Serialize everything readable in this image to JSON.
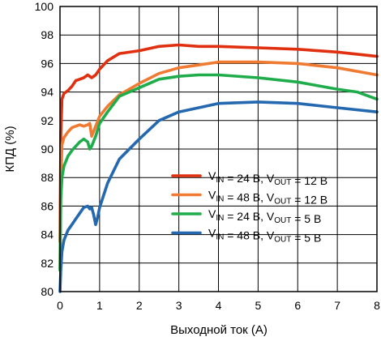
{
  "chart_data": {
    "type": "line",
    "title": "",
    "xlabel": "Выходной ток (А)",
    "ylabel": "КПД (%)",
    "xlim": [
      0,
      8
    ],
    "ylim": [
      80,
      100
    ],
    "x_ticks": [
      0,
      1,
      2,
      3,
      4,
      5,
      6,
      7,
      8
    ],
    "y_ticks": [
      80,
      82,
      84,
      86,
      88,
      90,
      92,
      94,
      96,
      98,
      100
    ],
    "grid": true,
    "legend_position": "center-right",
    "series": [
      {
        "legend": {
          "vin_label": "V",
          "vin_sub": "IN",
          "vin_value": " = 24 В, ",
          "vout_label": "V",
          "vout_sub": "OUT",
          "vout_value": " = 12 В"
        },
        "color": "#e0300f",
        "points": [
          [
            0,
            83.5
          ],
          [
            0.02,
            91
          ],
          [
            0.05,
            93.5
          ],
          [
            0.1,
            93.9
          ],
          [
            0.2,
            94.1
          ],
          [
            0.3,
            94.4
          ],
          [
            0.4,
            94.8
          ],
          [
            0.5,
            94.9
          ],
          [
            0.6,
            95.0
          ],
          [
            0.7,
            95.2
          ],
          [
            0.8,
            95.0
          ],
          [
            0.9,
            95.2
          ],
          [
            1.0,
            95.6
          ],
          [
            1.2,
            96.2
          ],
          [
            1.5,
            96.7
          ],
          [
            2.0,
            96.9
          ],
          [
            2.5,
            97.2
          ],
          [
            3.0,
            97.3
          ],
          [
            3.5,
            97.2
          ],
          [
            4.0,
            97.2
          ],
          [
            5.0,
            97.1
          ],
          [
            6.0,
            97.0
          ],
          [
            7.0,
            96.8
          ],
          [
            8.0,
            96.5
          ]
        ]
      },
      {
        "legend": {
          "vin_label": "V",
          "vin_sub": "IN",
          "vin_value": " = 48 В, ",
          "vout_label": "V",
          "vout_sub": "OUT",
          "vout_value": " = 12 В"
        },
        "color": "#f07a32",
        "points": [
          [
            0,
            81.6
          ],
          [
            0.02,
            87.5
          ],
          [
            0.05,
            90.3
          ],
          [
            0.1,
            90.8
          ],
          [
            0.2,
            91.2
          ],
          [
            0.3,
            91.5
          ],
          [
            0.4,
            91.6
          ],
          [
            0.5,
            91.7
          ],
          [
            0.6,
            91.6
          ],
          [
            0.7,
            91.7
          ],
          [
            0.75,
            91.8
          ],
          [
            0.8,
            90.9
          ],
          [
            0.9,
            91.6
          ],
          [
            1.0,
            92.3
          ],
          [
            1.2,
            93.0
          ],
          [
            1.5,
            93.8
          ],
          [
            2.0,
            94.6
          ],
          [
            2.5,
            95.3
          ],
          [
            3.0,
            95.7
          ],
          [
            3.5,
            95.9
          ],
          [
            4.0,
            96.1
          ],
          [
            5.0,
            96.1
          ],
          [
            6.0,
            96.0
          ],
          [
            7.0,
            95.7
          ],
          [
            8.0,
            95.2
          ]
        ]
      },
      {
        "legend": {
          "vin_label": "V",
          "vin_sub": "IN",
          "vin_value": " = 24 В, ",
          "vout_label": "V",
          "vout_sub": "OUT",
          "vout_value": " = 5 В"
        },
        "color": "#1fad4b",
        "points": [
          [
            0,
            81.5
          ],
          [
            0.02,
            86.5
          ],
          [
            0.05,
            88.0
          ],
          [
            0.1,
            88.8
          ],
          [
            0.2,
            89.5
          ],
          [
            0.3,
            89.9
          ],
          [
            0.4,
            90.2
          ],
          [
            0.5,
            90.5
          ],
          [
            0.6,
            90.7
          ],
          [
            0.7,
            90.5
          ],
          [
            0.75,
            90.0
          ],
          [
            0.8,
            90.2
          ],
          [
            0.9,
            90.9
          ],
          [
            1.0,
            91.8
          ],
          [
            1.2,
            92.6
          ],
          [
            1.5,
            93.7
          ],
          [
            2.0,
            94.3
          ],
          [
            2.5,
            94.9
          ],
          [
            3.0,
            95.1
          ],
          [
            3.5,
            95.2
          ],
          [
            4.0,
            95.2
          ],
          [
            5.0,
            95.0
          ],
          [
            6.0,
            94.7
          ],
          [
            7.0,
            94.2
          ],
          [
            7.5,
            94.0
          ],
          [
            8.0,
            93.5
          ]
        ]
      },
      {
        "legend": {
          "vin_label": "V",
          "vin_sub": "IN",
          "vin_value": " = 48 В, ",
          "vout_label": "V",
          "vout_sub": "OUT",
          "vout_value": " = 5 В"
        },
        "color": "#2468b0",
        "points": [
          [
            0,
            80.0
          ],
          [
            0.02,
            81.5
          ],
          [
            0.05,
            82.8
          ],
          [
            0.1,
            83.6
          ],
          [
            0.2,
            84.3
          ],
          [
            0.3,
            84.7
          ],
          [
            0.4,
            85.1
          ],
          [
            0.5,
            85.5
          ],
          [
            0.6,
            85.9
          ],
          [
            0.7,
            86.0
          ],
          [
            0.75,
            85.8
          ],
          [
            0.8,
            85.9
          ],
          [
            0.85,
            85.4
          ],
          [
            0.9,
            84.7
          ],
          [
            0.95,
            85.2
          ],
          [
            1.0,
            85.9
          ],
          [
            1.2,
            87.6
          ],
          [
            1.5,
            89.3
          ],
          [
            2.0,
            90.7
          ],
          [
            2.5,
            92.0
          ],
          [
            3.0,
            92.6
          ],
          [
            3.5,
            92.9
          ],
          [
            4.0,
            93.2
          ],
          [
            5.0,
            93.3
          ],
          [
            6.0,
            93.2
          ],
          [
            7.0,
            92.9
          ],
          [
            8.0,
            92.6
          ]
        ]
      }
    ]
  }
}
